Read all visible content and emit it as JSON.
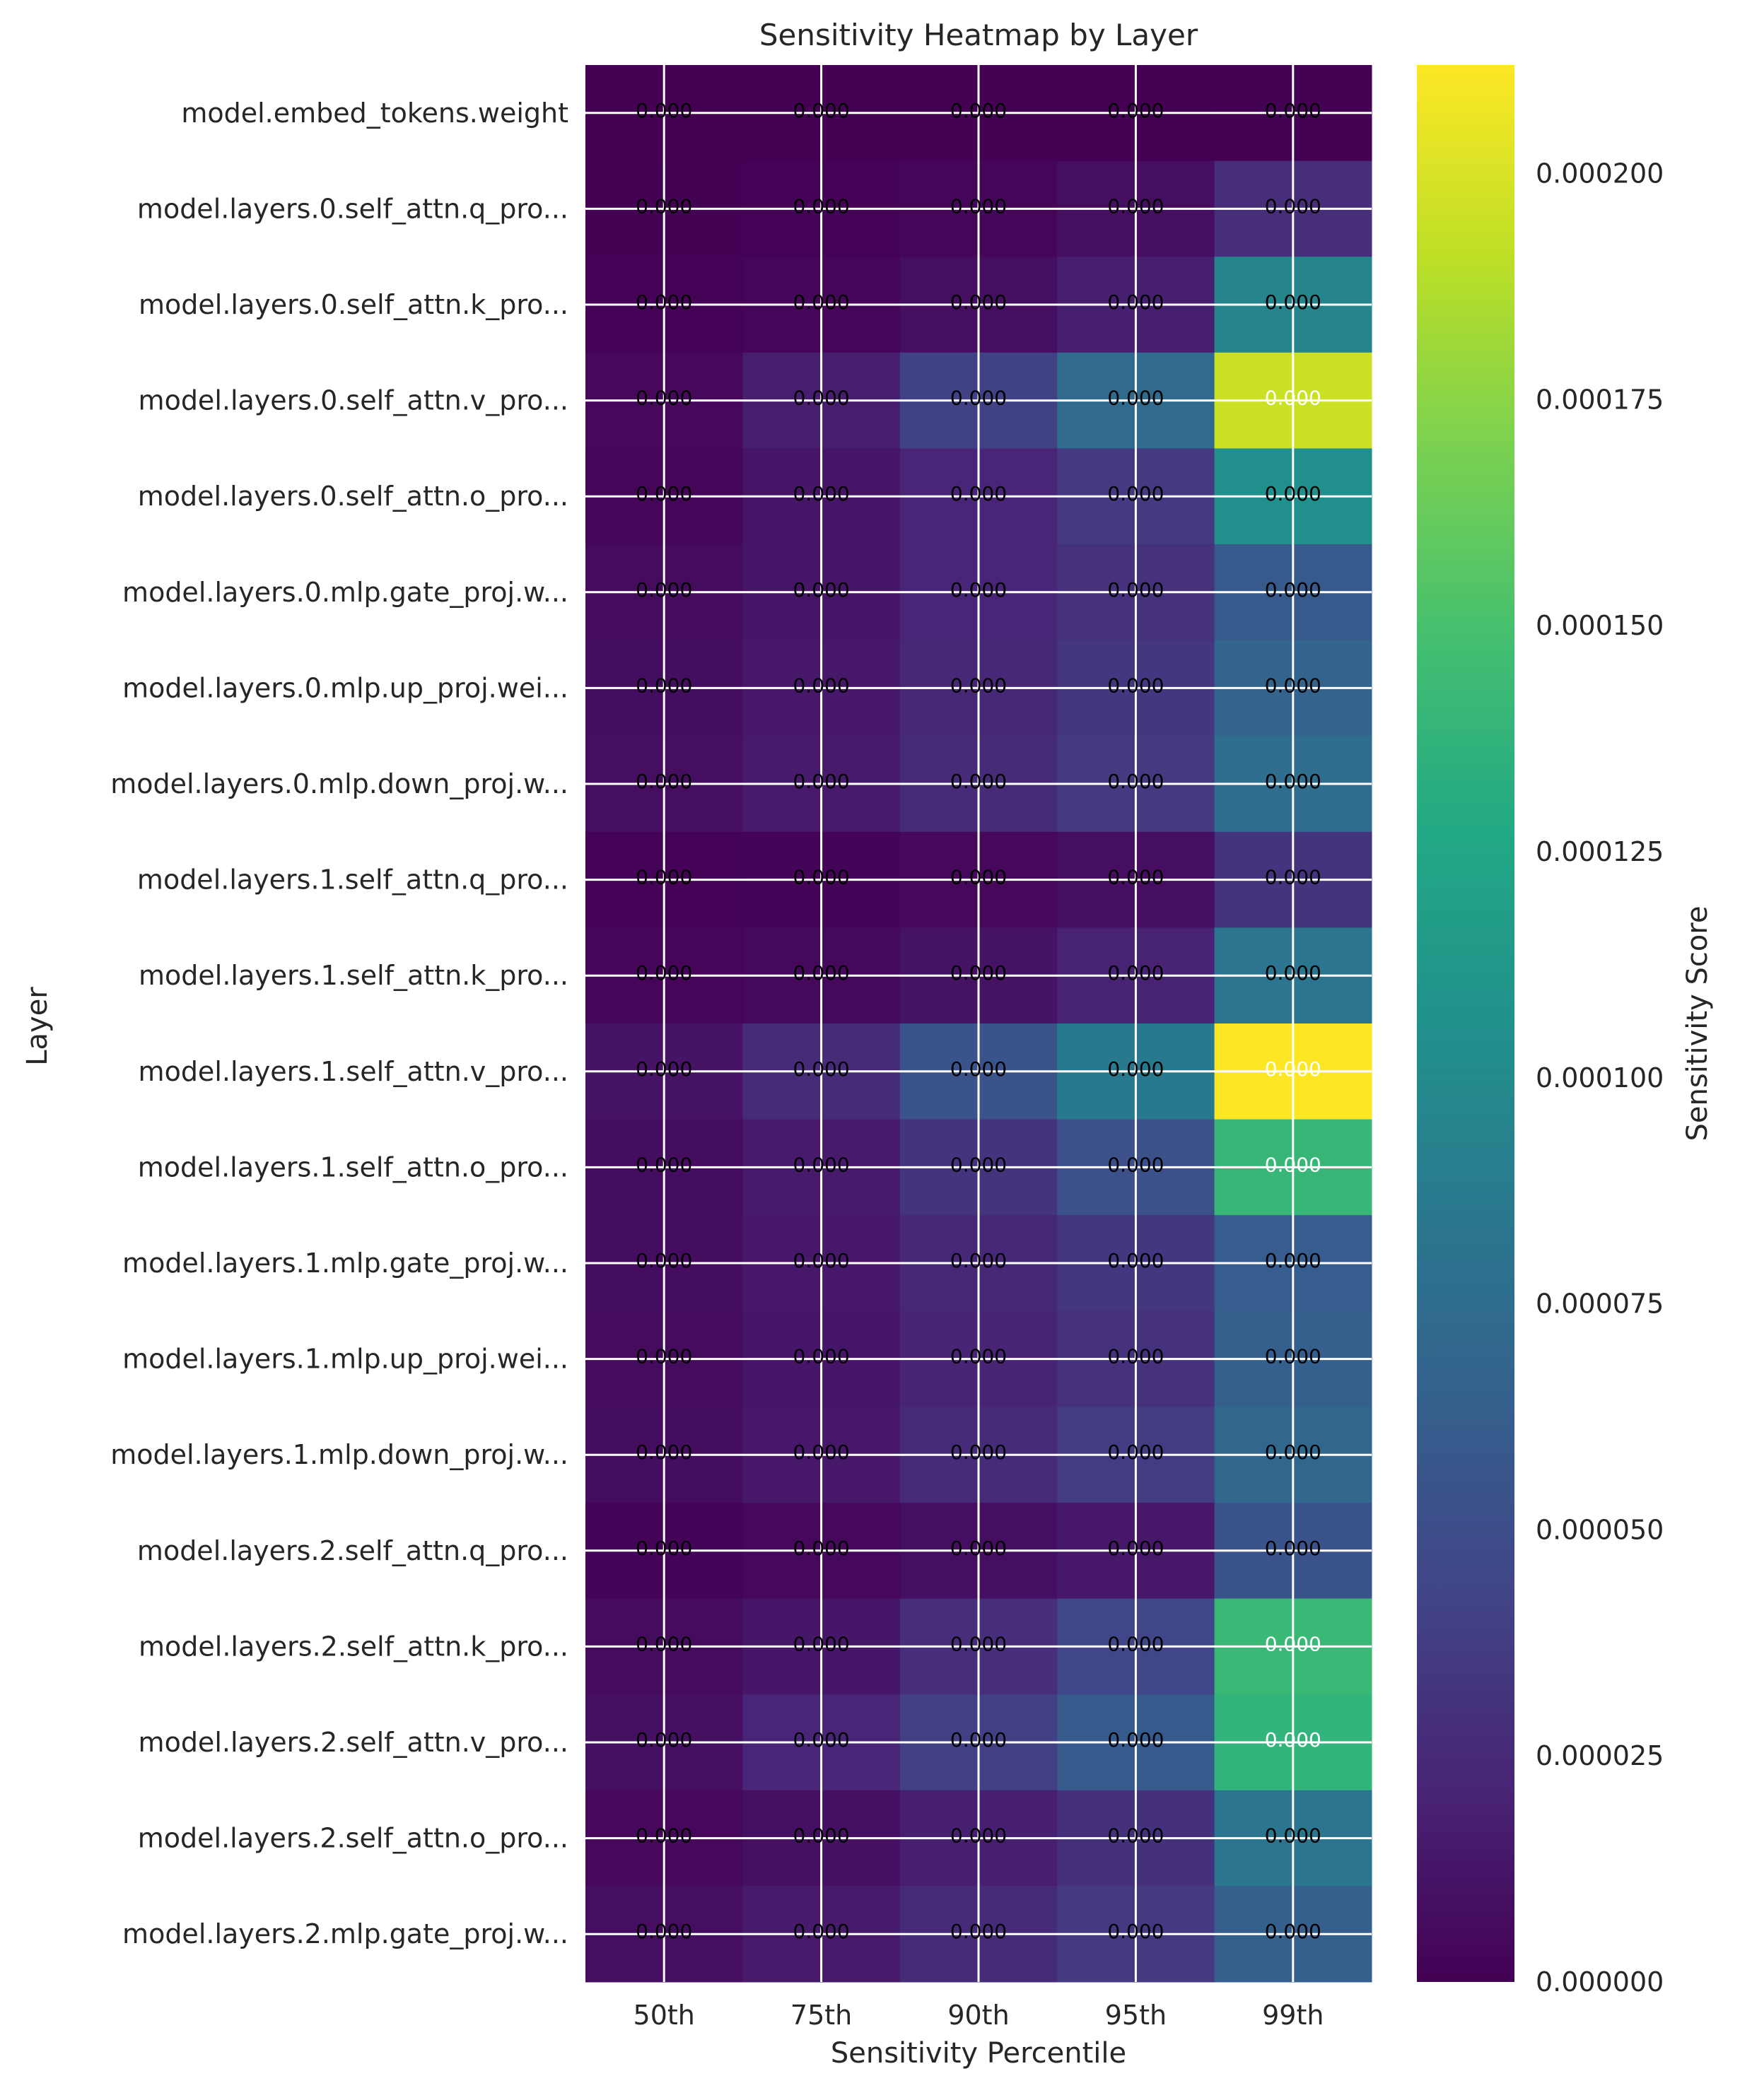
{
  "chart_data": {
    "type": "heatmap",
    "title": "Sensitivity Heatmap by Layer",
    "xlabel": "Sensitivity Percentile",
    "ylabel": "Layer",
    "colorbar_label": "Sensitivity Score",
    "colormap": "viridis",
    "vmin": 0.0,
    "vmax": 0.000212,
    "colorbar_ticks": [
      "0.000000",
      "0.000025",
      "0.000050",
      "0.000075",
      "0.000100",
      "0.000125",
      "0.000150",
      "0.000175",
      "0.000200"
    ],
    "colorbar_tick_values": [
      0.0,
      2.5e-05,
      5e-05,
      7.5e-05,
      0.0001,
      0.000125,
      0.00015,
      0.000175,
      0.0002
    ],
    "grid": true,
    "x_categories": [
      "50th",
      "75th",
      "90th",
      "95th",
      "99th"
    ],
    "y_categories": [
      "model.embed_tokens.weight",
      "model.layers.0.self_attn.q_pro...",
      "model.layers.0.self_attn.k_pro...",
      "model.layers.0.self_attn.v_pro...",
      "model.layers.0.self_attn.o_pro...",
      "model.layers.0.mlp.gate_proj.w...",
      "model.layers.0.mlp.up_proj.wei...",
      "model.layers.0.mlp.down_proj.w...",
      "model.layers.1.self_attn.q_pro...",
      "model.layers.1.self_attn.k_pro...",
      "model.layers.1.self_attn.v_pro...",
      "model.layers.1.self_attn.o_pro...",
      "model.layers.1.mlp.gate_proj.w...",
      "model.layers.1.mlp.up_proj.wei...",
      "model.layers.1.mlp.down_proj.w...",
      "model.layers.2.self_attn.q_pro...",
      "model.layers.2.self_attn.k_pro...",
      "model.layers.2.self_attn.v_pro...",
      "model.layers.2.self_attn.o_pro...",
      "model.layers.2.mlp.gate_proj.w..."
    ],
    "values": [
      [
        1e-07,
        1e-07,
        1e-07,
        2e-07,
        5e-07
      ],
      [
        5e-07,
        1e-06,
        3e-06,
        8e-06,
        2.8e-05
      ],
      [
        1e-06,
        3e-06,
        8e-06,
        1.8e-05,
        9.5e-05
      ],
      [
        4e-06,
        1.7e-05,
        4.1e-05,
        7.4e-05,
        0.000195
      ],
      [
        3e-06,
        1.2e-05,
        2.2e-05,
        3.6e-05,
        0.000105
      ],
      [
        6e-06,
        1.2e-05,
        2.2e-05,
        3e-05,
        6e-05
      ],
      [
        7e-06,
        1.4e-05,
        2.4e-05,
        3.3e-05,
        6.8e-05
      ],
      [
        8e-06,
        1.5e-05,
        2.6e-05,
        3.6e-05,
        7.6e-05
      ],
      [
        1e-06,
        2e-06,
        4e-06,
        8e-06,
        3.2e-05
      ],
      [
        3e-06,
        5e-06,
        1e-05,
        2e-05,
        8.3e-05
      ],
      [
        1.1e-05,
        2.6e-05,
        5.4e-05,
        8.6e-05,
        0.000212
      ],
      [
        7e-06,
        1.5e-05,
        3.2e-05,
        5.2e-05,
        0.00014
      ],
      [
        7e-06,
        1.4e-05,
        2.4e-05,
        3.3e-05,
        6.2e-05
      ],
      [
        6e-06,
        1.2e-05,
        2.1e-05,
        3e-05,
        6.4e-05
      ],
      [
        7e-06,
        1.4e-05,
        2.6e-05,
        3.7e-05,
        7e-05
      ],
      [
        2e-06,
        4e-06,
        8e-06,
        1.4e-05,
        5.5e-05
      ],
      [
        6e-06,
        1.3e-05,
        2.8e-05,
        4.4e-05,
        0.000142
      ],
      [
        9e-06,
        2.2e-05,
        4e-05,
        6e-05,
        0.000138
      ],
      [
        4e-06,
        9e-06,
        1.8e-05,
        2.9e-05,
        8.2e-05
      ],
      [
        8e-06,
        1.5e-05,
        2.6e-05,
        3.6e-05,
        6.4e-05
      ]
    ],
    "cell_label": "0.000"
  }
}
